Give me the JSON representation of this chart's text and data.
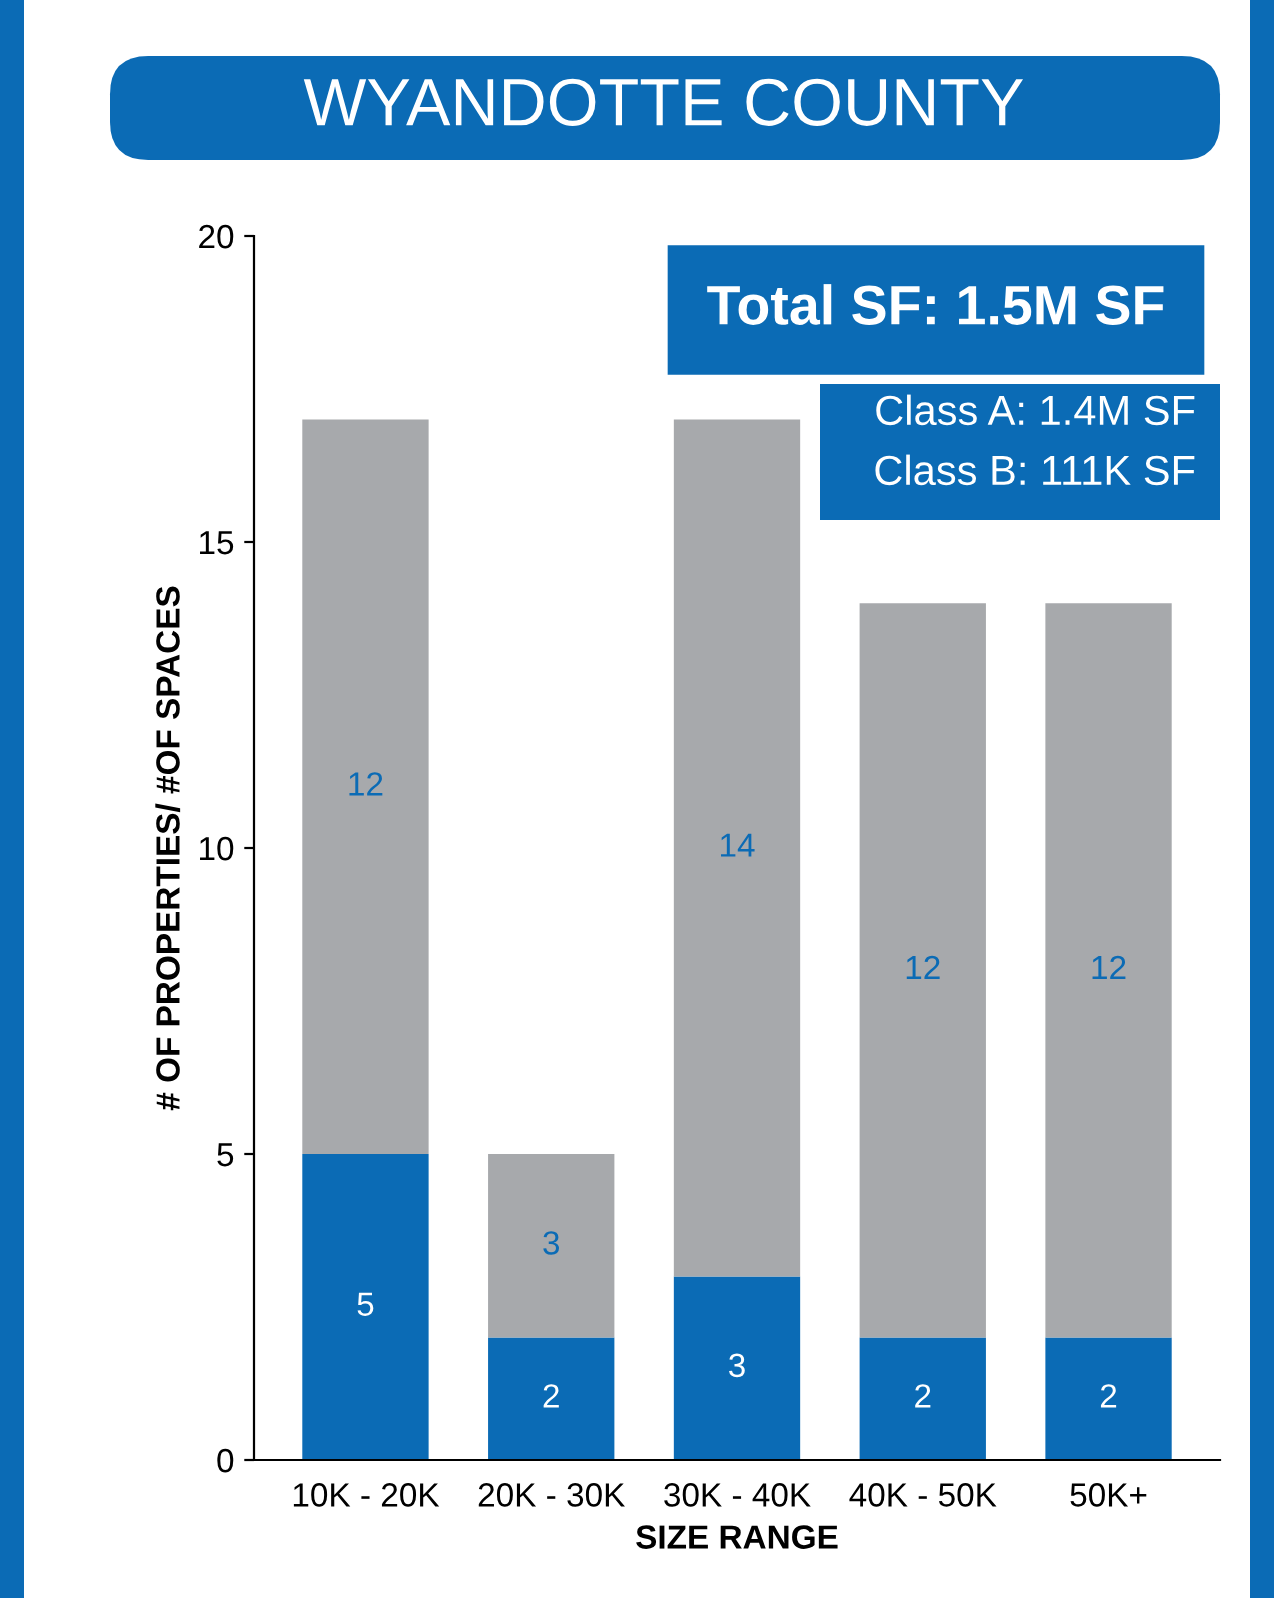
{
  "chart_data": {
    "type": "bar",
    "title": "WYANDOTTE COUNTY",
    "xlabel": "SIZE RANGE",
    "ylabel": "# OF PROPERTIES/ #OF SPACES",
    "categories": [
      "10K - 20K",
      "20K - 30K",
      "30K - 40K",
      "40K - 50K",
      "50K+"
    ],
    "series": [
      {
        "color": "#0b6bb5",
        "values": [
          5,
          2,
          3,
          2,
          2
        ]
      },
      {
        "color": "#a7a9ac",
        "values": [
          12,
          3,
          14,
          12,
          12
        ]
      }
    ],
    "stacked": true,
    "data_labels": true,
    "ylim": [
      0,
      20
    ],
    "yticks": [
      0,
      5,
      10,
      15,
      20
    ],
    "grid": false,
    "legend": false,
    "annotations": [
      "Total SF: 1.5M SF",
      "Class A: 1.4M SF",
      "Class B: 111K SF"
    ]
  }
}
